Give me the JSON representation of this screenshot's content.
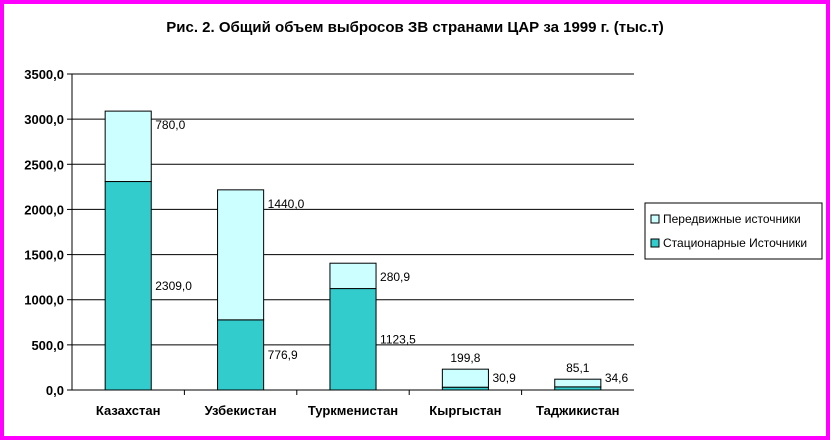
{
  "chart_data": {
    "type": "bar",
    "stacked": true,
    "title": "Рис. 2. Общий объем выбросов ЗВ странами ЦАР за 1999 г. (тыс.т)",
    "categories": [
      "Казахстан",
      "Узбекистан",
      "Туркменистан",
      "Кыргыстан",
      "Таджикистан"
    ],
    "series": [
      {
        "name": "Стационарные Источники",
        "color": "#33cccc",
        "values": [
          2309.0,
          776.9,
          1123.5,
          30.9,
          34.6
        ],
        "labels": [
          "2309,0",
          "776,9",
          "1123,5",
          "30,9",
          "34,6"
        ]
      },
      {
        "name": "Передвижные источники",
        "color": "#ccffff",
        "values": [
          780.0,
          1440.0,
          280.9,
          199.8,
          85.1
        ],
        "labels": [
          "780,0",
          "1440,0",
          "280,9",
          "199,8",
          "85,1"
        ]
      }
    ],
    "legend_order": [
      "Передвижные источники",
      "Стационарные Источники"
    ],
    "ylim": [
      0,
      3500
    ],
    "yticks": [
      "0,0",
      "500,0",
      "1000,0",
      "1500,0",
      "2000,0",
      "2500,0",
      "3000,0",
      "3500,0"
    ],
    "ytick_values": [
      0,
      500,
      1000,
      1500,
      2000,
      2500,
      3000,
      3500
    ],
    "grid": true,
    "legend_position": "right",
    "frame_color": "#ff00ff"
  }
}
